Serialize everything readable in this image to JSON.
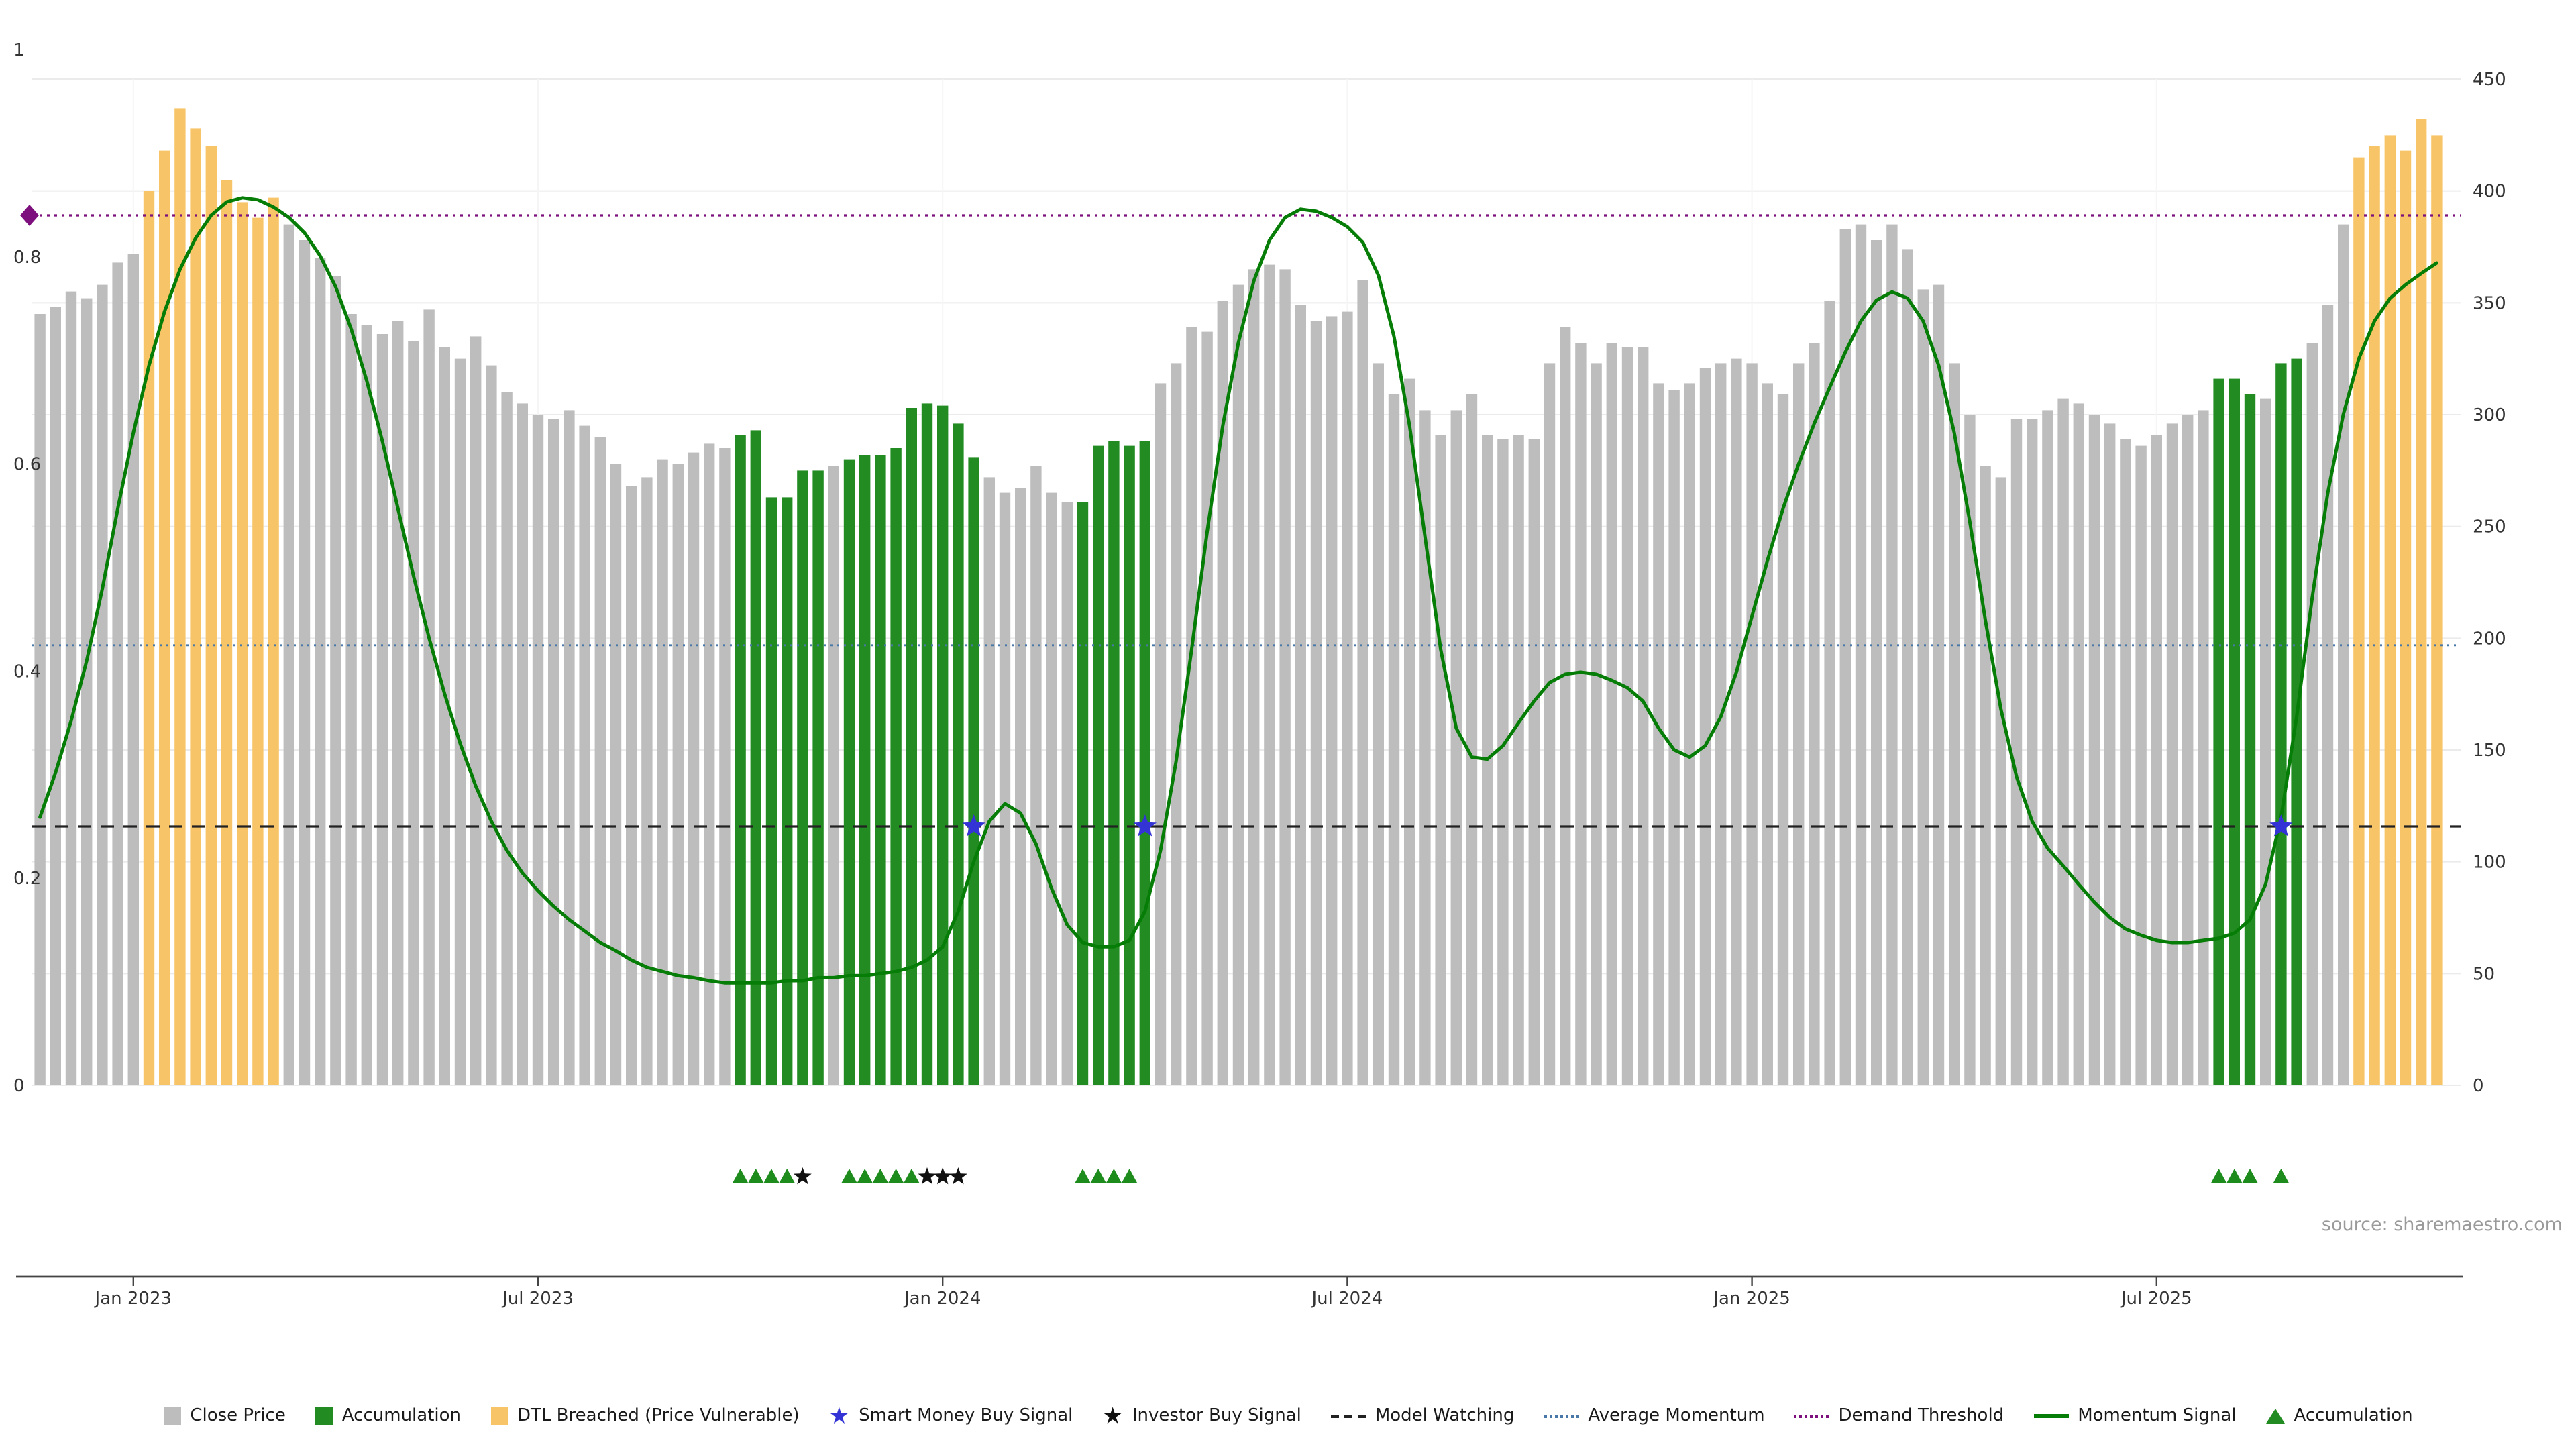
{
  "chart_data": {
    "type": "mixed",
    "description": "Weekly close price bars with momentum signal line, thresholds and buy-signal markers",
    "x_axis": {
      "tick_labels": [
        "Jan 2023",
        "Jul 2023",
        "Jan 2024",
        "Jul 2024",
        "Jan 2025",
        "Jul 2025"
      ],
      "tick_indices": [
        6,
        32,
        58,
        84,
        110,
        136
      ]
    },
    "left_axis": {
      "min": 0,
      "max": 1,
      "ticks": [
        "0",
        "0.2",
        "0.4",
        "0.6",
        "0.8",
        "1"
      ]
    },
    "right_axis": {
      "min": 0,
      "max": 450,
      "ticks": [
        "0",
        "50",
        "100",
        "150",
        "200",
        "250",
        "300",
        "350",
        "400",
        "450"
      ]
    },
    "bars": {
      "axis": "right",
      "accumulation_ranges": [
        [
          45,
          50
        ],
        [
          52,
          60
        ],
        [
          67,
          71
        ],
        [
          140,
          142
        ],
        [
          144,
          145
        ]
      ],
      "dtl_ranges": [
        [
          7,
          15
        ],
        [
          149,
          154
        ]
      ],
      "values": [
        345,
        348,
        355,
        352,
        358,
        368,
        372,
        400,
        418,
        437,
        428,
        420,
        405,
        395,
        388,
        397,
        385,
        378,
        370,
        362,
        345,
        340,
        336,
        342,
        333,
        347,
        330,
        325,
        335,
        322,
        310,
        305,
        300,
        298,
        302,
        295,
        290,
        278,
        268,
        272,
        280,
        278,
        283,
        287,
        285,
        291,
        293,
        263,
        263,
        275,
        275,
        277,
        280,
        282,
        282,
        285,
        303,
        305,
        304,
        296,
        281,
        272,
        265,
        267,
        277,
        265,
        261,
        261,
        286,
        288,
        286,
        288,
        314,
        323,
        339,
        337,
        351,
        358,
        365,
        367,
        365,
        349,
        342,
        344,
        346,
        360,
        323,
        309,
        316,
        302,
        291,
        302,
        309,
        291,
        289,
        291,
        289,
        323,
        339,
        332,
        323,
        332,
        330,
        330,
        314,
        311,
        314,
        321,
        323,
        325,
        323,
        314,
        309,
        323,
        332,
        351,
        383,
        385,
        378,
        385,
        374,
        356,
        358,
        323,
        300,
        277,
        272,
        298,
        298,
        302,
        307,
        305,
        300,
        296,
        289,
        286,
        291,
        296,
        300,
        302,
        316,
        316,
        309,
        307,
        323,
        325,
        332,
        349,
        385,
        415,
        420,
        425,
        418,
        432,
        425
      ]
    },
    "momentum": {
      "axis": "left",
      "values": [
        0.259,
        0.302,
        0.352,
        0.41,
        0.479,
        0.557,
        0.63,
        0.695,
        0.747,
        0.788,
        0.818,
        0.84,
        0.853,
        0.857,
        0.855,
        0.848,
        0.838,
        0.823,
        0.801,
        0.771,
        0.73,
        0.68,
        0.622,
        0.557,
        0.492,
        0.432,
        0.378,
        0.33,
        0.289,
        0.255,
        0.227,
        0.205,
        0.188,
        0.173,
        0.16,
        0.149,
        0.138,
        0.13,
        0.121,
        0.114,
        0.11,
        0.106,
        0.104,
        0.101,
        0.099,
        0.099,
        0.099,
        0.099,
        0.101,
        0.101,
        0.104,
        0.104,
        0.106,
        0.106,
        0.108,
        0.11,
        0.114,
        0.121,
        0.134,
        0.168,
        0.216,
        0.255,
        0.272,
        0.263,
        0.233,
        0.19,
        0.155,
        0.138,
        0.134,
        0.134,
        0.14,
        0.168,
        0.227,
        0.313,
        0.421,
        0.535,
        0.637,
        0.717,
        0.777,
        0.816,
        0.838,
        0.846,
        0.844,
        0.838,
        0.829,
        0.814,
        0.782,
        0.723,
        0.637,
        0.529,
        0.421,
        0.345,
        0.317,
        0.315,
        0.328,
        0.35,
        0.371,
        0.389,
        0.397,
        0.399,
        0.397,
        0.391,
        0.384,
        0.371,
        0.345,
        0.324,
        0.317,
        0.328,
        0.356,
        0.399,
        0.453,
        0.507,
        0.557,
        0.6,
        0.639,
        0.674,
        0.708,
        0.738,
        0.758,
        0.766,
        0.76,
        0.738,
        0.695,
        0.63,
        0.544,
        0.449,
        0.363,
        0.298,
        0.255,
        0.229,
        0.212,
        0.194,
        0.177,
        0.162,
        0.151,
        0.145,
        0.14,
        0.138,
        0.138,
        0.14,
        0.142,
        0.147,
        0.16,
        0.194,
        0.259,
        0.356,
        0.471,
        0.572,
        0.648,
        0.702,
        0.738,
        0.76,
        0.773,
        0.784,
        0.794
      ]
    },
    "hlines": [
      {
        "id": "model-watching",
        "label": "Model Watching",
        "axis": "left",
        "value": 0.25,
        "color": "#222222",
        "dash": "10 7",
        "width": 1.6
      },
      {
        "id": "average-momentum",
        "label": "Average Momentum",
        "axis": "left",
        "value": 0.425,
        "color": "#4878a8",
        "dash": "1.5 3.5",
        "width": 1.4
      },
      {
        "id": "demand-threshold",
        "label": "Demand Threshold",
        "axis": "left",
        "value": 0.84,
        "color": "#7d107d",
        "dash": "2 3.5",
        "width": 1.6
      }
    ],
    "smart_money_indices": [
      60,
      71,
      144
    ],
    "buy_level": 0.25,
    "demand_diamond": {
      "index": 0,
      "value": 0.84
    },
    "accumulation_triangles": [
      45,
      46,
      47,
      48,
      52,
      53,
      54,
      55,
      56,
      67,
      68,
      69,
      70,
      140,
      141,
      142,
      144
    ],
    "investor_stars": [
      49,
      57,
      58,
      59
    ],
    "source": "source: sharemaestro.com",
    "colors": {
      "close_price": "#bdbdbd",
      "accumulation": "#228b22",
      "dtl_breached": "#f7c568",
      "momentum": "#067d06",
      "smart_money": "#3434d6",
      "investor": "#111111",
      "demand_threshold": "#7d107d",
      "triangle": "#1d8c1d"
    }
  },
  "legend": {
    "items": [
      {
        "label": "Close Price",
        "swatch": "square",
        "color": "#bdbdbd"
      },
      {
        "label": "Accumulation",
        "swatch": "square",
        "color": "#228b22"
      },
      {
        "label": "DTL Breached (Price Vulnerable)",
        "swatch": "square",
        "color": "#f7c568"
      },
      {
        "label": "Smart Money Buy Signal",
        "swatch": "star",
        "color": "#3434d6"
      },
      {
        "label": "Investor Buy Signal",
        "swatch": "star",
        "color": "#111111"
      },
      {
        "label": "Model Watching",
        "swatch": "line-dashed",
        "color": "#222222"
      },
      {
        "label": "Average Momentum",
        "swatch": "line-dotted",
        "color": "#4878a8"
      },
      {
        "label": "Demand Threshold",
        "swatch": "line-dotted",
        "color": "#7d107d"
      },
      {
        "label": "Momentum Signal",
        "swatch": "line-solid",
        "color": "#067d06"
      },
      {
        "label": "Accumulation",
        "swatch": "triangle",
        "color": "#228b22"
      }
    ]
  }
}
